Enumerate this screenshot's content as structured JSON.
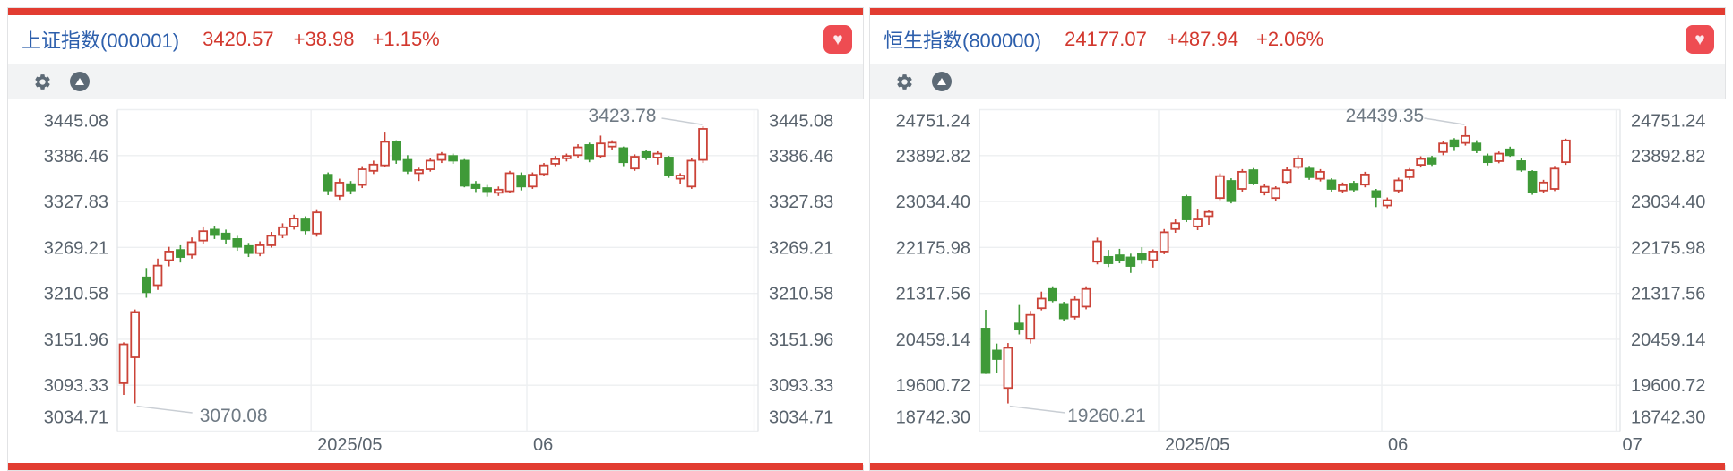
{
  "panels": [
    {
      "header": {
        "title": "上证指数(000001)",
        "price": "3420.57",
        "change": "+38.98",
        "change_pct": "+1.15%"
      }
    },
    {
      "header": {
        "title": "恒生指数(800000)",
        "price": "24177.07",
        "change": "+487.94",
        "change_pct": "+2.06%"
      }
    }
  ],
  "icons": {
    "favorite_glyph": "♥"
  },
  "colors": {
    "accent_red": "#e23c31",
    "title_blue": "#2d5fac",
    "price_red": "#d2382e",
    "up_candle": "#cb4338",
    "down_candle": "#3f9a38",
    "grid": "#edeff1",
    "plot_border": "#e4e6e9",
    "axis_text": "#59636d",
    "annotation_text": "#6f7a84",
    "annotation_line": "#c9ced4",
    "toolbar_bg": "#f2f3f4",
    "icon_gray": "#5d6a76",
    "heart_bg": "#ee4c52"
  },
  "chart_data": [
    {
      "type": "candlestick",
      "title": "上证指数(000001)",
      "last_price": 3420.57,
      "change": 38.98,
      "change_pct": "+1.15%",
      "ylim": [
        3034.71,
        3445.08
      ],
      "y_axis_labels": [
        "3445.08",
        "3386.46",
        "3327.83",
        "3269.21",
        "3210.58",
        "3151.96",
        "3093.33",
        "3034.71"
      ],
      "x_ticks": [
        {
          "label": "2025/05",
          "first_candle_index": 17
        },
        {
          "label": "06",
          "first_candle_index": 36
        },
        {
          "label": "",
          "first_candle_index": 56
        }
      ],
      "annotations": [
        {
          "type": "max",
          "text": "3423.78",
          "value": 3423.78,
          "candle_index": 51
        },
        {
          "type": "min",
          "text": "3070.08",
          "value": 3070.08,
          "candle_index": 1
        }
      ],
      "candles_ohlc": [
        [
          3096,
          3148,
          3081,
          3145.55
        ],
        [
          3129,
          3190,
          3070.08,
          3186.81
        ],
        [
          3231,
          3243,
          3205,
          3212
        ],
        [
          3221,
          3255,
          3215,
          3246
        ],
        [
          3253,
          3270,
          3245,
          3264
        ],
        [
          3266,
          3272,
          3250,
          3257
        ],
        [
          3260,
          3282,
          3255,
          3276
        ],
        [
          3278,
          3296,
          3274,
          3290
        ],
        [
          3292,
          3297,
          3280,
          3285
        ],
        [
          3287,
          3292,
          3274,
          3280
        ],
        [
          3280,
          3284,
          3265,
          3270
        ],
        [
          3271,
          3275,
          3257,
          3262
        ],
        [
          3262,
          3277,
          3258,
          3272
        ],
        [
          3272,
          3289,
          3269,
          3284
        ],
        [
          3285,
          3300,
          3281,
          3295
        ],
        [
          3296,
          3311,
          3292,
          3306
        ],
        [
          3305,
          3309,
          3286,
          3291
        ],
        [
          3287,
          3318,
          3283,
          3314
        ],
        [
          3362,
          3365,
          3336,
          3342
        ],
        [
          3335,
          3357,
          3330,
          3352
        ],
        [
          3350,
          3354,
          3337,
          3342
        ],
        [
          3349,
          3373,
          3345,
          3369
        ],
        [
          3367,
          3380,
          3363,
          3375
        ],
        [
          3374,
          3417,
          3372,
          3404
        ],
        [
          3404,
          3406,
          3376,
          3381
        ],
        [
          3381,
          3387,
          3363,
          3367
        ],
        [
          3364,
          3371,
          3354,
          3368
        ],
        [
          3369,
          3383,
          3366,
          3380
        ],
        [
          3381,
          3391,
          3377,
          3388
        ],
        [
          3386,
          3389,
          3376,
          3380
        ],
        [
          3380,
          3382,
          3346,
          3348
        ],
        [
          3350,
          3354,
          3340,
          3345
        ],
        [
          3345,
          3349,
          3334,
          3341
        ],
        [
          3339,
          3347,
          3335,
          3343
        ],
        [
          3341,
          3367,
          3339,
          3364
        ],
        [
          3361,
          3365,
          3342,
          3347
        ],
        [
          3347,
          3365,
          3344,
          3362
        ],
        [
          3363,
          3377,
          3360,
          3374
        ],
        [
          3376,
          3386,
          3373,
          3382
        ],
        [
          3383,
          3389,
          3379,
          3386
        ],
        [
          3387,
          3401,
          3384,
          3397
        ],
        [
          3400,
          3403,
          3378,
          3382
        ],
        [
          3386,
          3412,
          3383,
          3402
        ],
        [
          3398,
          3406,
          3394,
          3403
        ],
        [
          3396,
          3398,
          3373,
          3378
        ],
        [
          3370,
          3388,
          3367,
          3385
        ],
        [
          3391,
          3394,
          3381,
          3385
        ],
        [
          3384,
          3392,
          3375,
          3389
        ],
        [
          3384,
          3386,
          3358,
          3362
        ],
        [
          3357,
          3364,
          3350,
          3361
        ],
        [
          3347,
          3383,
          3344,
          3380
        ],
        [
          3381,
          3423.78,
          3377,
          3420.57
        ]
      ]
    },
    {
      "type": "candlestick",
      "title": "恒生指数(800000)",
      "last_price": 24177.07,
      "change": 487.94,
      "change_pct": "+2.06%",
      "ylim": [
        18742.3,
        24751.24
      ],
      "y_axis_labels": [
        "24751.24",
        "23892.82",
        "23034.40",
        "22175.98",
        "21317.56",
        "20459.14",
        "19600.72",
        "18742.30"
      ],
      "x_ticks": [
        {
          "label": "2025/05",
          "first_candle_index": 16
        },
        {
          "label": "06",
          "first_candle_index": 36
        },
        {
          "label": "07",
          "first_candle_index": 57
        }
      ],
      "annotations": [
        {
          "type": "max",
          "text": "24439.35",
          "value": 24439.35,
          "candle_index": 43
        },
        {
          "type": "min",
          "text": "19260.21",
          "value": 19260.21,
          "candle_index": 2
        }
      ],
      "candles_ohlc": [
        [
          20660,
          21010,
          19810,
          19829
        ],
        [
          20250,
          20380,
          19830,
          20090
        ],
        [
          19550,
          20390,
          19260.21,
          20300
        ],
        [
          20755,
          21100,
          20550,
          20640
        ],
        [
          20470,
          20990,
          20380,
          20915
        ],
        [
          21040,
          21350,
          21000,
          21220
        ],
        [
          21400,
          21450,
          21150,
          21190
        ],
        [
          21120,
          21160,
          20800,
          20850
        ],
        [
          20880,
          21260,
          20830,
          21200
        ],
        [
          21070,
          21450,
          21020,
          21400
        ],
        [
          21910,
          22360,
          21860,
          22290
        ],
        [
          22000,
          22130,
          21810,
          21880
        ],
        [
          22030,
          22150,
          21880,
          21930
        ],
        [
          21990,
          22060,
          21700,
          21830
        ],
        [
          22060,
          22180,
          21870,
          21960
        ],
        [
          21940,
          22140,
          21800,
          22100
        ],
        [
          22100,
          22520,
          22050,
          22460
        ],
        [
          22520,
          22700,
          22450,
          22630
        ],
        [
          23120,
          23160,
          22650,
          22700
        ],
        [
          22570,
          22900,
          22500,
          22700
        ],
        [
          22760,
          22880,
          22600,
          22840
        ],
        [
          23100,
          23560,
          23060,
          23510
        ],
        [
          23420,
          23470,
          23000,
          23040
        ],
        [
          23270,
          23640,
          23220,
          23590
        ],
        [
          23620,
          23660,
          23340,
          23380
        ],
        [
          23210,
          23360,
          23150,
          23310
        ],
        [
          23100,
          23320,
          23050,
          23280
        ],
        [
          23400,
          23680,
          23360,
          23620
        ],
        [
          23680,
          23900,
          23640,
          23840
        ],
        [
          23650,
          23700,
          23440,
          23490
        ],
        [
          23460,
          23640,
          23410,
          23590
        ],
        [
          23430,
          23470,
          23220,
          23270
        ],
        [
          23240,
          23390,
          23190,
          23340
        ],
        [
          23370,
          23420,
          23220,
          23260
        ],
        [
          23350,
          23590,
          23300,
          23540
        ],
        [
          23230,
          23270,
          22930,
          23120
        ],
        [
          22960,
          23110,
          22910,
          23060
        ],
        [
          23240,
          23480,
          23190,
          23430
        ],
        [
          23490,
          23660,
          23440,
          23620
        ],
        [
          23720,
          23880,
          23670,
          23830
        ],
        [
          23850,
          23890,
          23700,
          23740
        ],
        [
          23960,
          24160,
          23900,
          24120
        ],
        [
          24180,
          24220,
          23980,
          24070
        ],
        [
          24130,
          24439.35,
          24080,
          24260
        ],
        [
          24120,
          24180,
          23940,
          23990
        ],
        [
          23880,
          23930,
          23710,
          23770
        ],
        [
          23790,
          23970,
          23750,
          23930
        ],
        [
          24010,
          24060,
          23870,
          23900
        ],
        [
          23790,
          23840,
          23590,
          23630
        ],
        [
          23590,
          23620,
          23160,
          23210
        ],
        [
          23240,
          23440,
          23190,
          23390
        ],
        [
          23270,
          23700,
          23230,
          23650
        ],
        [
          23770,
          24210,
          23720,
          24177.07
        ]
      ]
    }
  ]
}
